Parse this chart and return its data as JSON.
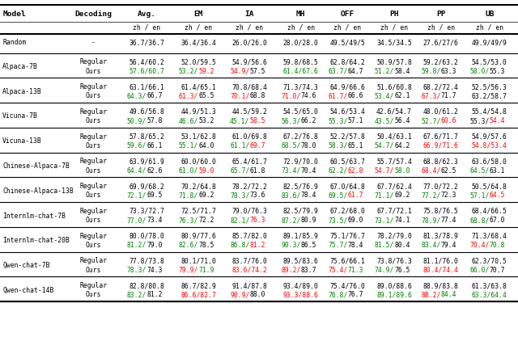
{
  "col_headers_top": [
    "Avg.",
    "EM",
    "IA",
    "MH",
    "OFF",
    "PH",
    "PP",
    "UB"
  ],
  "random_row": {
    "values": [
      "36.7/36.7",
      "36.4/36.4",
      "26.0/26.0",
      "28.0/28.0",
      "49.5/49/5",
      "34.5/34.5",
      "27.6/27/6",
      "49.9/49/9"
    ]
  },
  "groups": [
    {
      "model": "Alpaca-7B",
      "regular": [
        "56.4/60.2",
        "52.0/59.5",
        "54.9/56.6",
        "59.8/68.5",
        "62.8/64.2",
        "50.9/57.8",
        "59.2/63.2",
        "54.5/53.0"
      ],
      "regular_colors": [
        [
          "k",
          "k"
        ],
        [
          "k",
          "k"
        ],
        [
          "k",
          "k"
        ],
        [
          "k",
          "k"
        ],
        [
          "k",
          "k"
        ],
        [
          "k",
          "k"
        ],
        [
          "k",
          "k"
        ],
        [
          "k",
          "k"
        ]
      ],
      "ours": [
        "57.6/60.7",
        "53.2/59.2",
        "54.9/57.5",
        "61.4/67.6",
        "63.7/64.7",
        "51.2/58.4",
        "59.8/63.3",
        "58.0/55.3"
      ],
      "ours_colors": [
        [
          "g",
          "g"
        ],
        [
          "g",
          "r"
        ],
        [
          "r",
          "k"
        ],
        [
          "g",
          "g"
        ],
        [
          "g",
          "k"
        ],
        [
          "g",
          "k"
        ],
        [
          "g",
          "k"
        ],
        [
          "g",
          "k"
        ]
      ]
    },
    {
      "model": "Alpaca-13B",
      "regular": [
        "63.1/66.1",
        "61.4/65.1",
        "70.8/68.4",
        "71.3/74.3",
        "64.9/66.6",
        "51.6/60.8",
        "68.2/72.4",
        "52.5/56.3"
      ],
      "regular_colors": [
        [
          "k",
          "k"
        ],
        [
          "k",
          "k"
        ],
        [
          "k",
          "k"
        ],
        [
          "k",
          "k"
        ],
        [
          "k",
          "k"
        ],
        [
          "k",
          "k"
        ],
        [
          "k",
          "k"
        ],
        [
          "k",
          "k"
        ]
      ],
      "ours": [
        "64.3/66.7",
        "61.3/65.5",
        "70.1/68.8",
        "71.0/74.6",
        "61.7/66.6",
        "53.4/62.1",
        "67.3/71.7",
        "63.2/58.7"
      ],
      "ours_colors": [
        [
          "g",
          "k"
        ],
        [
          "r",
          "k"
        ],
        [
          "r",
          "k"
        ],
        [
          "r",
          "k"
        ],
        [
          "r",
          "k"
        ],
        [
          "g",
          "k"
        ],
        [
          "r",
          "k"
        ],
        [
          "k",
          "k"
        ]
      ]
    },
    {
      "model": "Vicuna-7B",
      "regular": [
        "49.6/56.8",
        "44.9/51.3",
        "44.5/59.2",
        "54.5/65.0",
        "54.6/53.4",
        "42.6/54.7",
        "48.0/61.2",
        "55.4/54.8"
      ],
      "regular_colors": [
        [
          "k",
          "k"
        ],
        [
          "k",
          "k"
        ],
        [
          "k",
          "k"
        ],
        [
          "k",
          "k"
        ],
        [
          "k",
          "k"
        ],
        [
          "k",
          "k"
        ],
        [
          "k",
          "k"
        ],
        [
          "k",
          "k"
        ]
      ],
      "ours": [
        "50.9/57.8",
        "46.6/53.2",
        "45.1/58.5",
        "56.3/66.2",
        "55.3/57.1",
        "43.5/56.4",
        "52.7/60.6",
        "55.3/54.4"
      ],
      "ours_colors": [
        [
          "g",
          "k"
        ],
        [
          "g",
          "k"
        ],
        [
          "g",
          "r"
        ],
        [
          "g",
          "k"
        ],
        [
          "g",
          "k"
        ],
        [
          "g",
          "k"
        ],
        [
          "g",
          "r"
        ],
        [
          "k",
          "r"
        ]
      ]
    },
    {
      "model": "Vicuna-13B",
      "regular": [
        "57.8/65.2",
        "53.1/62.8",
        "61.0/69.8",
        "67.2/76.8",
        "52.2/57.8",
        "50.4/63.1",
        "67.6/71.7",
        "54.9/57.6"
      ],
      "regular_colors": [
        [
          "k",
          "k"
        ],
        [
          "k",
          "k"
        ],
        [
          "k",
          "k"
        ],
        [
          "k",
          "k"
        ],
        [
          "k",
          "k"
        ],
        [
          "k",
          "k"
        ],
        [
          "k",
          "k"
        ],
        [
          "k",
          "k"
        ]
      ],
      "ours": [
        "59.6/66.1",
        "55.1/64.0",
        "61.1/69.7",
        "68.5/78.0",
        "58.3/65.1",
        "54.7/64.2",
        "66.9/71.6",
        "54.8/53.4"
      ],
      "ours_colors": [
        [
          "g",
          "k"
        ],
        [
          "g",
          "k"
        ],
        [
          "g",
          "r"
        ],
        [
          "g",
          "k"
        ],
        [
          "g",
          "k"
        ],
        [
          "g",
          "k"
        ],
        [
          "r",
          "r"
        ],
        [
          "r",
          "r"
        ]
      ]
    },
    {
      "model": "Chinese-Alpaca-7B",
      "regular": [
        "63.9/61.9",
        "60.0/60.0",
        "65.4/61.7",
        "72.9/70.0",
        "60.5/63.7",
        "55.7/57.4",
        "68.8/62.3",
        "63.6/58.0"
      ],
      "regular_colors": [
        [
          "k",
          "k"
        ],
        [
          "k",
          "k"
        ],
        [
          "k",
          "k"
        ],
        [
          "k",
          "k"
        ],
        [
          "k",
          "k"
        ],
        [
          "k",
          "k"
        ],
        [
          "k",
          "k"
        ],
        [
          "k",
          "k"
        ]
      ],
      "ours": [
        "64.4/62.6",
        "61.0/59.0",
        "65.7/61.8",
        "73.4/70.4",
        "62.2/62.8",
        "54.7/58.0",
        "68.4/62.5",
        "64.5/63.1"
      ],
      "ours_colors": [
        [
          "g",
          "k"
        ],
        [
          "g",
          "r"
        ],
        [
          "g",
          "k"
        ],
        [
          "g",
          "k"
        ],
        [
          "g",
          "r"
        ],
        [
          "r",
          "g"
        ],
        [
          "r",
          "k"
        ],
        [
          "g",
          "k"
        ]
      ]
    },
    {
      "model": "Chinese-Alpaca-13B",
      "regular": [
        "69.9/68.2",
        "70.2/64.8",
        "78.2/72.2",
        "82.5/76.9",
        "67.0/64.8",
        "67.7/62.4",
        "77.0/72.2",
        "50.5/64.8"
      ],
      "regular_colors": [
        [
          "k",
          "k"
        ],
        [
          "k",
          "k"
        ],
        [
          "k",
          "k"
        ],
        [
          "k",
          "k"
        ],
        [
          "k",
          "k"
        ],
        [
          "k",
          "k"
        ],
        [
          "k",
          "k"
        ],
        [
          "k",
          "k"
        ]
      ],
      "ours": [
        "72.1/69.5",
        "71.8/69.2",
        "78.3/73.6",
        "83.6/78.4",
        "69.5/61.7",
        "71.1/69.2",
        "77.2/72.3",
        "57.1/64.5"
      ],
      "ours_colors": [
        [
          "g",
          "k"
        ],
        [
          "g",
          "k"
        ],
        [
          "g",
          "k"
        ],
        [
          "g",
          "k"
        ],
        [
          "g",
          "r"
        ],
        [
          "g",
          "k"
        ],
        [
          "g",
          "k"
        ],
        [
          "g",
          "r"
        ]
      ]
    },
    {
      "model": "Internlm-chat-7B",
      "regular": [
        "73.3/72.7",
        "72.5/71.7",
        "79.0/76.3",
        "82.5/79.9",
        "67.2/68.0",
        "67.7/72.1",
        "75.8/76.5",
        "68.4/66.5"
      ],
      "regular_colors": [
        [
          "k",
          "k"
        ],
        [
          "k",
          "k"
        ],
        [
          "k",
          "k"
        ],
        [
          "k",
          "k"
        ],
        [
          "k",
          "k"
        ],
        [
          "k",
          "k"
        ],
        [
          "k",
          "k"
        ],
        [
          "k",
          "k"
        ]
      ],
      "ours": [
        "77.0/73.4",
        "76.3/72.2",
        "82.1/76.3",
        "87.2/80.9",
        "73.5/69.0",
        "73.1/74.1",
        "78.9/77.4",
        "68.8/67.0"
      ],
      "ours_colors": [
        [
          "g",
          "k"
        ],
        [
          "g",
          "k"
        ],
        [
          "g",
          "r"
        ],
        [
          "g",
          "k"
        ],
        [
          "g",
          "k"
        ],
        [
          "g",
          "k"
        ],
        [
          "g",
          "k"
        ],
        [
          "g",
          "k"
        ]
      ]
    },
    {
      "model": "Internlm-chat-20B",
      "regular": [
        "80.0/78.0",
        "80.9/77.6",
        "85.7/82.0",
        "89.1/85.9",
        "75.1/76.7",
        "78.2/79.0",
        "81.3/78.9",
        "71.3/68.4"
      ],
      "regular_colors": [
        [
          "k",
          "k"
        ],
        [
          "k",
          "k"
        ],
        [
          "k",
          "k"
        ],
        [
          "k",
          "k"
        ],
        [
          "k",
          "k"
        ],
        [
          "k",
          "k"
        ],
        [
          "k",
          "k"
        ],
        [
          "k",
          "k"
        ]
      ],
      "ours": [
        "81.2/79.0",
        "82.6/78.5",
        "86.8/81.2",
        "90.3/86.5",
        "75.7/78.4",
        "81.5/80.4",
        "83.4/79.4",
        "70.4/70.8"
      ],
      "ours_colors": [
        [
          "g",
          "k"
        ],
        [
          "g",
          "k"
        ],
        [
          "g",
          "r"
        ],
        [
          "g",
          "k"
        ],
        [
          "g",
          "k"
        ],
        [
          "g",
          "k"
        ],
        [
          "g",
          "k"
        ],
        [
          "r",
          "g"
        ]
      ]
    },
    {
      "model": "Qwen-chat-7B",
      "regular": [
        "77.8/73.8",
        "80.1/71.0",
        "83.7/76.0",
        "89.5/83.6",
        "75.6/66.1",
        "73.8/76.3",
        "81.1/76.0",
        "62.3/70.5"
      ],
      "regular_colors": [
        [
          "k",
          "k"
        ],
        [
          "k",
          "k"
        ],
        [
          "k",
          "k"
        ],
        [
          "k",
          "k"
        ],
        [
          "k",
          "k"
        ],
        [
          "k",
          "k"
        ],
        [
          "k",
          "k"
        ],
        [
          "k",
          "k"
        ]
      ],
      "ours": [
        "78.3/74.3",
        "79.9/71.9",
        "83.6/74.2",
        "89.2/83.7",
        "75.4/71.3",
        "74.9/76.5",
        "80.4/74.4",
        "66.0/70.7"
      ],
      "ours_colors": [
        [
          "g",
          "k"
        ],
        [
          "r",
          "g"
        ],
        [
          "r",
          "r"
        ],
        [
          "r",
          "k"
        ],
        [
          "r",
          "g"
        ],
        [
          "g",
          "k"
        ],
        [
          "r",
          "r"
        ],
        [
          "g",
          "k"
        ]
      ]
    },
    {
      "model": "Qwen-chat-14B",
      "regular": [
        "82.8/80.8",
        "86.7/82.9",
        "91.4/87.8",
        "93.4/89.0",
        "75.4/76.0",
        "89.0/88.6",
        "88.9/83.8",
        "61.3/63.8"
      ],
      "regular_colors": [
        [
          "k",
          "k"
        ],
        [
          "k",
          "k"
        ],
        [
          "k",
          "k"
        ],
        [
          "k",
          "k"
        ],
        [
          "k",
          "k"
        ],
        [
          "k",
          "k"
        ],
        [
          "k",
          "k"
        ],
        [
          "k",
          "k"
        ]
      ],
      "ours": [
        "83.2/81.2",
        "86.6/82.7",
        "90.9/88.0",
        "93.3/88.6",
        "76.8/76.7",
        "89.1/89.6",
        "88.2/84.4",
        "63.3/64.4"
      ],
      "ours_colors": [
        [
          "g",
          "k"
        ],
        [
          "r",
          "r"
        ],
        [
          "r",
          "k"
        ],
        [
          "r",
          "r"
        ],
        [
          "g",
          "k"
        ],
        [
          "g",
          "g"
        ],
        [
          "r",
          "g"
        ],
        [
          "g",
          "g"
        ]
      ]
    }
  ],
  "color_map": {
    "k": "black",
    "g": "green",
    "r": "red"
  }
}
